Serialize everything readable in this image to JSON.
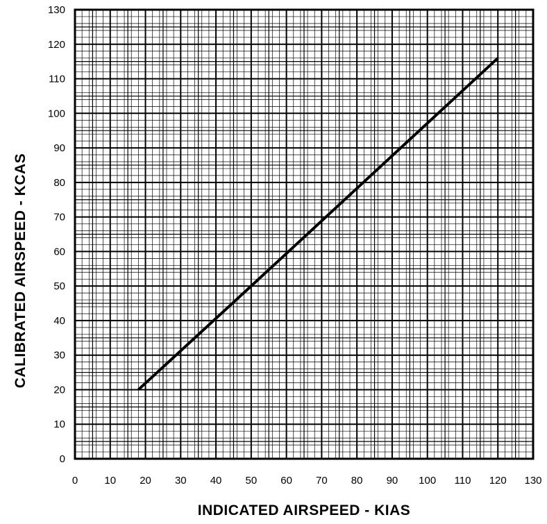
{
  "chart_data": {
    "type": "line",
    "xlabel": "INDICATED AIRSPEED - KIAS",
    "ylabel": "CALIBRATED AIRSPEED - KCAS",
    "xlim": [
      0,
      130
    ],
    "ylim": [
      0,
      130
    ],
    "x_ticks": [
      "0",
      "10",
      "20",
      "30",
      "40",
      "50",
      "60",
      "70",
      "80",
      "90",
      "100",
      "110",
      "120",
      "130"
    ],
    "y_ticks": [
      "0",
      "10",
      "20",
      "30",
      "40",
      "50",
      "60",
      "70",
      "80",
      "90",
      "100",
      "110",
      "120",
      "130"
    ],
    "grid": true,
    "series": [
      {
        "x": [
          18,
          50,
          120
        ],
        "y": [
          20,
          50,
          116
        ]
      }
    ]
  }
}
